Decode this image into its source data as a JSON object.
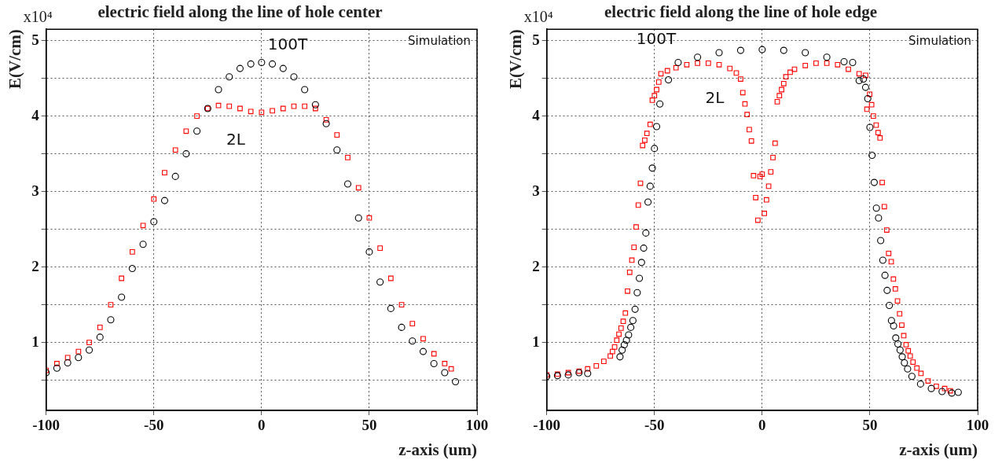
{
  "chart_data": [
    {
      "type": "scatter",
      "title": "electric field along the line of hole center",
      "xlabel": "z-axis (um)",
      "ylabel": "E(V/cm)",
      "annotations": [
        "x10⁴",
        "Simulation"
      ],
      "xlim": [
        -100,
        100
      ],
      "ylim": [
        0.1,
        5.15
      ],
      "xticks": [
        -100,
        -50,
        0,
        50,
        100
      ],
      "yticks": [
        {
          "value": 0.5,
          "label": null
        },
        1,
        {
          "value": 1.5,
          "label": null
        },
        2,
        {
          "value": 2.5,
          "label": null
        },
        3,
        {
          "value": 3.5,
          "label": null
        },
        4,
        {
          "value": 4.5,
          "label": null
        },
        5
      ],
      "grid": true,
      "legend": false,
      "series": [
        {
          "name": "100T",
          "color": "#000000",
          "marker": "circle",
          "x": [
            -100,
            -95,
            -90,
            -85,
            -80,
            -75,
            -70,
            -65,
            -60,
            -55,
            -50,
            -45,
            -40,
            -35,
            -30,
            -25,
            -20,
            -15,
            -10,
            -5,
            0,
            5,
            10,
            15,
            20,
            25,
            30,
            35,
            40,
            45,
            50,
            55,
            60,
            65,
            70,
            75,
            80,
            85,
            90
          ],
          "values": [
            0.6,
            0.66,
            0.73,
            0.8,
            0.9,
            1.07,
            1.3,
            1.6,
            1.98,
            2.3,
            2.6,
            2.88,
            3.2,
            3.5,
            3.8,
            4.1,
            4.35,
            4.52,
            4.63,
            4.69,
            4.71,
            4.69,
            4.63,
            4.52,
            4.35,
            4.15,
            3.9,
            3.55,
            3.1,
            2.65,
            2.2,
            1.8,
            1.45,
            1.2,
            1.02,
            0.88,
            0.72,
            0.6,
            0.48
          ]
        },
        {
          "name": "2L",
          "color": "#ff0000",
          "marker": "square",
          "x": [
            -100,
            -95,
            -90,
            -85,
            -80,
            -75,
            -70,
            -65,
            -60,
            -55,
            -50,
            -45,
            -40,
            -35,
            -30,
            -25,
            -20,
            -15,
            -10,
            -5,
            0,
            5,
            10,
            15,
            20,
            25,
            30,
            35,
            40,
            45,
            50,
            55,
            60,
            65,
            70,
            75,
            80,
            85,
            88
          ],
          "values": [
            0.63,
            0.72,
            0.8,
            0.88,
            1.0,
            1.2,
            1.5,
            1.85,
            2.2,
            2.55,
            2.9,
            3.25,
            3.55,
            3.8,
            4.0,
            4.1,
            4.14,
            4.13,
            4.1,
            4.06,
            4.05,
            4.07,
            4.1,
            4.13,
            4.13,
            4.1,
            3.95,
            3.75,
            3.45,
            3.05,
            2.65,
            2.25,
            1.85,
            1.5,
            1.25,
            1.05,
            0.85,
            0.72,
            0.65
          ]
        }
      ]
    },
    {
      "type": "scatter",
      "title": "electric field along the line of hole edge",
      "xlabel": "z-axis (um)",
      "ylabel": "E(V/cm)",
      "annotations": [
        "x10⁴",
        "Simulation"
      ],
      "xlim": [
        -100,
        100
      ],
      "ylim": [
        0.1,
        5.15
      ],
      "xticks": [
        -100,
        -50,
        0,
        50,
        100
      ],
      "yticks": [
        {
          "value": 0.5,
          "label": null
        },
        1,
        {
          "value": 1.5,
          "label": null
        },
        2,
        {
          "value": 2.5,
          "label": null
        },
        3,
        {
          "value": 3.5,
          "label": null
        },
        4,
        {
          "value": 4.5,
          "label": null
        },
        5
      ],
      "grid": true,
      "legend": false,
      "series": [
        {
          "name": "100T",
          "color": "#000000",
          "marker": "circle",
          "x": [
            -100,
            -95,
            -90,
            -85,
            -81,
            -66,
            -65,
            -64,
            -63,
            -62,
            -61,
            -60,
            -59,
            -58,
            -57,
            -56,
            -55,
            -54,
            -53,
            -52,
            -51,
            -50,
            -49,
            -47.5,
            -43.5,
            -39,
            -30,
            -20,
            -10,
            0,
            10,
            20,
            30,
            38,
            42,
            45,
            47,
            48,
            49,
            50,
            51,
            52,
            53,
            54,
            55,
            56,
            57,
            58,
            59,
            60,
            61,
            62,
            63,
            64,
            65,
            66,
            67.5,
            69.5,
            73.5,
            78.5,
            83.5,
            88,
            91
          ],
          "values": [
            0.55,
            0.56,
            0.57,
            0.6,
            0.59,
            0.81,
            0.9,
            0.97,
            1.03,
            1.1,
            1.2,
            1.29,
            1.44,
            1.66,
            1.85,
            2.06,
            2.25,
            2.45,
            2.86,
            3.07,
            3.31,
            3.57,
            3.86,
            4.16,
            4.48,
            4.71,
            4.78,
            4.84,
            4.87,
            4.88,
            4.87,
            4.84,
            4.78,
            4.72,
            4.71,
            4.47,
            4.49,
            4.38,
            4.23,
            3.85,
            3.48,
            3.12,
            2.78,
            2.65,
            2.35,
            2.09,
            1.89,
            1.69,
            1.49,
            1.29,
            1.22,
            1.06,
            0.98,
            0.9,
            0.81,
            0.73,
            0.65,
            0.55,
            0.45,
            0.39,
            0.35,
            0.33,
            0.34
          ]
        },
        {
          "name": "2L",
          "color": "#ff0000",
          "marker": "square",
          "x": [
            -100,
            -95,
            -90,
            -85,
            -81,
            -77,
            -73.5,
            -70.5,
            -69.5,
            -68.5,
            -67.5,
            -66.5,
            -65.5,
            -64.5,
            -63.5,
            -62.5,
            -61.5,
            -60.5,
            -59.5,
            -58.5,
            -57.5,
            -56.5,
            -55.5,
            -54.5,
            -53.5,
            -52,
            -51,
            -50,
            -49,
            -48,
            -47,
            -44,
            -40,
            -35,
            -30,
            -25,
            -20,
            -15,
            -12,
            -10,
            -9,
            -8,
            -7,
            -6,
            -5,
            -4,
            -3,
            -2,
            -1,
            0,
            1,
            2,
            3,
            4,
            5,
            6,
            7,
            8,
            9,
            10,
            11,
            13,
            15,
            20,
            25,
            30,
            35,
            40,
            45,
            48,
            49.9,
            48.6,
            50.8,
            51.6,
            52.9,
            53.8,
            54.7,
            55.7,
            56.7,
            57.8,
            58.7,
            59.9,
            60.9,
            61.8,
            62.8,
            63.8,
            64.8,
            65.7,
            66.8,
            67.8,
            68.7,
            70,
            71.8,
            73.7,
            77,
            80.8,
            84.7,
            87.3
          ],
          "values": [
            0.57,
            0.58,
            0.6,
            0.62,
            0.65,
            0.69,
            0.75,
            0.82,
            0.88,
            0.94,
            1.03,
            1.11,
            1.19,
            1.28,
            1.39,
            1.68,
            1.93,
            2.09,
            2.26,
            2.53,
            2.82,
            3.11,
            3.61,
            3.68,
            3.77,
            3.89,
            4.21,
            4.27,
            4.35,
            4.45,
            4.56,
            4.6,
            4.64,
            4.68,
            4.7,
            4.7,
            4.68,
            4.63,
            4.57,
            4.49,
            4.31,
            4.16,
            4.02,
            3.82,
            3.67,
            3.21,
            2.92,
            2.62,
            3.2,
            3.23,
            2.71,
            2.89,
            3.07,
            3.26,
            3.45,
            3.64,
            4.19,
            4.27,
            4.35,
            4.43,
            4.52,
            4.58,
            4.62,
            4.67,
            4.7,
            4.7,
            4.68,
            4.62,
            4.56,
            4.54,
            4.29,
            4.09,
            4.15,
            4.0,
            3.88,
            3.78,
            3.71,
            3.12,
            2.8,
            2.49,
            2.18,
            2.07,
            1.84,
            1.71,
            1.55,
            1.38,
            1.23,
            1.09,
            0.97,
            0.89,
            0.82,
            0.74,
            0.66,
            0.59,
            0.49,
            0.42,
            0.39,
            0.36
          ]
        }
      ]
    }
  ]
}
